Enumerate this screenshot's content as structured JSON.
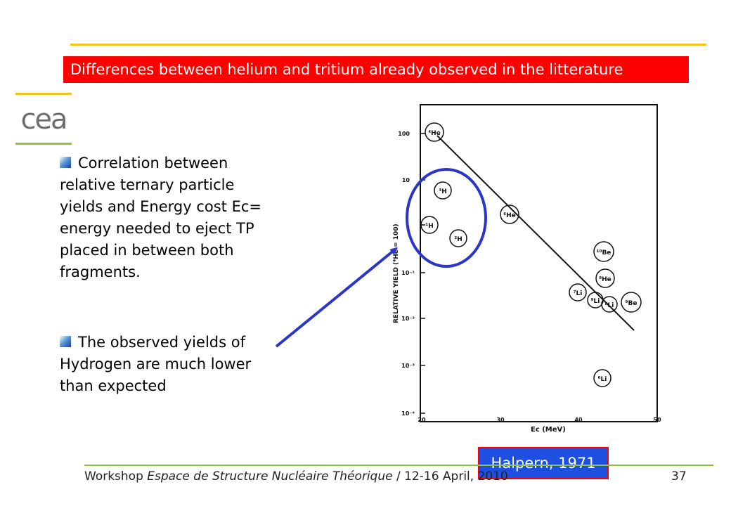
{
  "title": "Differences between helium and tritium already observed in the litterature",
  "logo_text": "cea",
  "bullets": [
    {
      "text": "Correlation between relative ternary particle yields and Energy cost Ec= energy needed to eject TP placed in between both fragments."
    },
    {
      "text": "The observed yields of Hydrogen are much lower than expected"
    }
  ],
  "plot": {
    "y_tick_labels": [
      "100",
      "10",
      "1",
      "10⁻¹",
      "10⁻²",
      "10⁻³",
      "10⁻⁴"
    ],
    "x_tick_labels": [
      "20",
      "30",
      "40",
      "50"
    ],
    "ylabel": "RELATIVE YIELD (⁴He = 100)",
    "xlabel": "Eᴄ (MeV)",
    "points": [
      {
        "label": "⁴He"
      },
      {
        "label": "³H"
      },
      {
        "label": "¹H"
      },
      {
        "label": "²H"
      },
      {
        "label": "⁶He"
      },
      {
        "label": "¹⁰Be"
      },
      {
        "label": "⁸He"
      },
      {
        "label": "⁷Li"
      },
      {
        "label": "⁹Li"
      },
      {
        "label": "⁸Li"
      },
      {
        "label": "⁹Be"
      },
      {
        "label": "⁶Li"
      }
    ]
  },
  "citation": "Halpern, 1971",
  "footer": {
    "prefix": "Workshop ",
    "italic": "Espace de Structure Nucléaire Théorique",
    "suffix": " / 12-16 April, 2010",
    "page_number": "37"
  },
  "colors": {
    "title_bg": "#ff0000",
    "citation_bg": "#1f4fe0",
    "highlight": "#2b35c8",
    "rule_top": "#f0c419",
    "rule_bottom": "#8cc63f"
  }
}
